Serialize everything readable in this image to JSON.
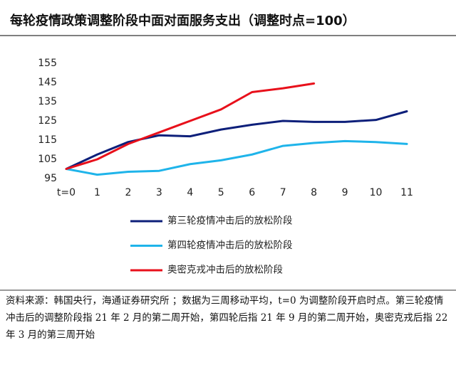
{
  "chart_data": {
    "type": "line",
    "title": "每轮疫情政策调整阶段中面对面服务支出（调整时点=100）",
    "categories": [
      "t=0",
      "1",
      "2",
      "3",
      "4",
      "5",
      "6",
      "7",
      "8",
      "9",
      "10",
      "11"
    ],
    "series": [
      {
        "name": "第三轮疫情冲击后的放松阶段",
        "color": "#0d1f7a",
        "values": [
          100,
          107.5,
          114,
          117.5,
          117,
          120.5,
          123,
          125,
          124.5,
          124.5,
          125.5,
          130
        ]
      },
      {
        "name": "第四轮疫情冲击后的放松阶段",
        "color": "#1fb4ea",
        "values": [
          100,
          97,
          98.5,
          99,
          102.5,
          104.5,
          107.5,
          112,
          113.5,
          114.5,
          114,
          113
        ]
      },
      {
        "name": "奥密克戎冲击后的放松阶段",
        "color": "#e8101b",
        "values": [
          100,
          105,
          113,
          119,
          125,
          131,
          140,
          142,
          144.5,
          null,
          null,
          null
        ]
      }
    ],
    "ylim": [
      95,
      155
    ],
    "yticks": [
      95,
      105,
      115,
      125,
      135,
      145,
      155
    ],
    "note": "资料来源：韩国央行，海通证券研究所 ；数据为三周移动平均，t=0 为调整阶段开启时点。第三轮疫情冲击后的调整阶段指 21 年 2 月的第二周开始，第四轮后指 21 年 9 月的第二周开始，奥密克戎后指 22 年 3 月的第三周开始"
  }
}
